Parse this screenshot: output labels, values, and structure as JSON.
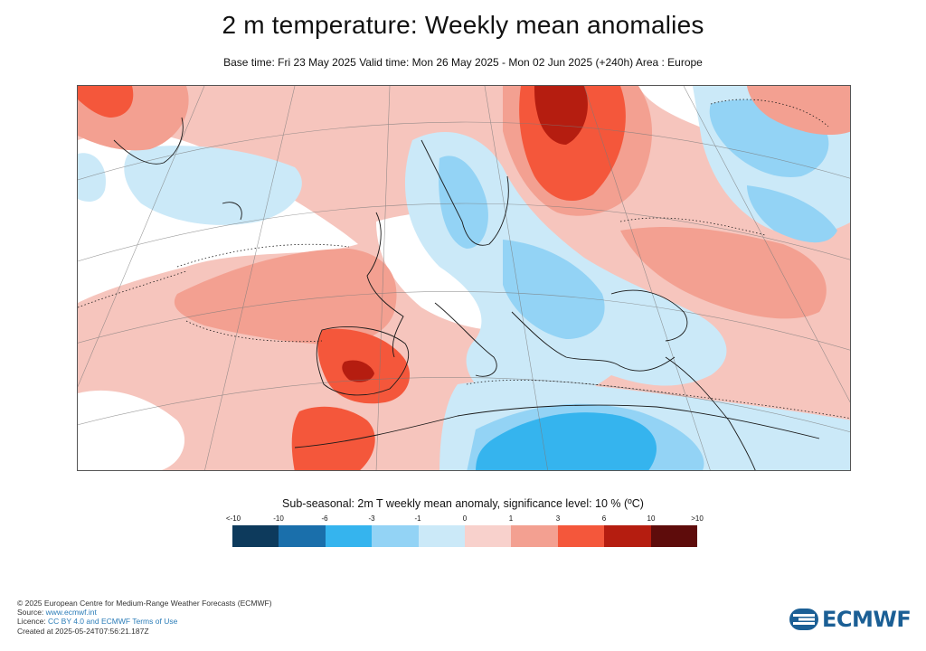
{
  "title": "2 m temperature: Weekly mean anomalies",
  "subtitle": "Base time: Fri 23 May 2025 Valid time: Mon 26 May 2025 - Mon 02 Jun 2025 (+240h) Area : Europe",
  "legend": {
    "title": "Sub-seasonal: 2m T weekly mean anomaly, significance level: 10 % (ºC)",
    "ticks": [
      "<-10",
      "-10",
      "-6",
      "-3",
      "-1",
      "0",
      "1",
      "3",
      "6",
      "10",
      ">10"
    ],
    "colors": [
      "#0d3a5c",
      "#1a6fab",
      "#35b4ee",
      "#93d3f5",
      "#cbe9f8",
      "#f8d1cc",
      "#f3a091",
      "#f4573b",
      "#b51d10",
      "#5e0c0b"
    ]
  },
  "map_colors": {
    "light_red": "#f6c5bd",
    "red": "#f3a091",
    "strong_red": "#f4573b",
    "dark_red": "#b51d10",
    "light_blue": "#cbe9f8",
    "blue": "#93d3f5",
    "strong_blue": "#35b4ee",
    "white": "#ffffff"
  },
  "footer": {
    "copyright": "© 2025 European Centre for Medium-Range Weather Forecasts (ECMWF)",
    "source_label": "Source: ",
    "source_link": "www.ecmwf.int",
    "licence_label": "Licence: ",
    "licence_link": "CC BY 4.0 and ECMWF Terms of Use",
    "created": "Created at 2025-05-24T07:56:21.187Z"
  },
  "logo_text": "ECMWF"
}
